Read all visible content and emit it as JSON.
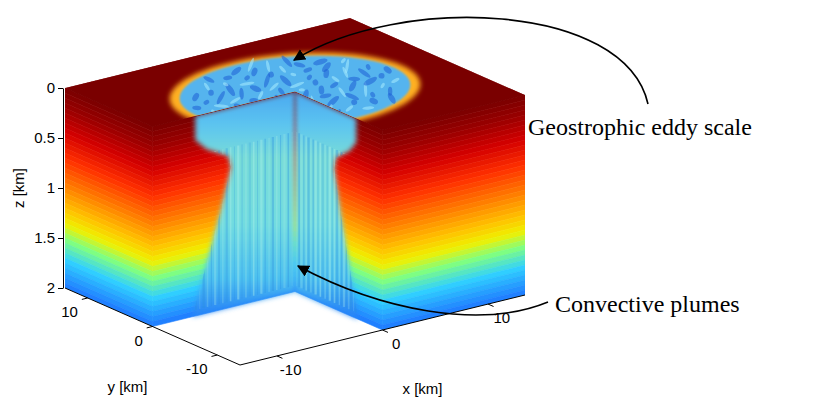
{
  "chart_data": {
    "type": "volume",
    "xlabel": "x [km]",
    "ylabel": "y [km]",
    "zlabel": "z [km]",
    "xlim": [
      -13.5,
      13.5
    ],
    "ylim": [
      -13.5,
      13.5
    ],
    "zlim": [
      0,
      2
    ],
    "xticks": [
      -10,
      0,
      10
    ],
    "yticks": [
      -10,
      0,
      10
    ],
    "zticks": [
      0,
      0.5,
      1,
      1.5,
      2
    ],
    "annotations": [
      {
        "text": "Geostrophic eddy scale"
      },
      {
        "text": "Convective plumes"
      }
    ]
  }
}
